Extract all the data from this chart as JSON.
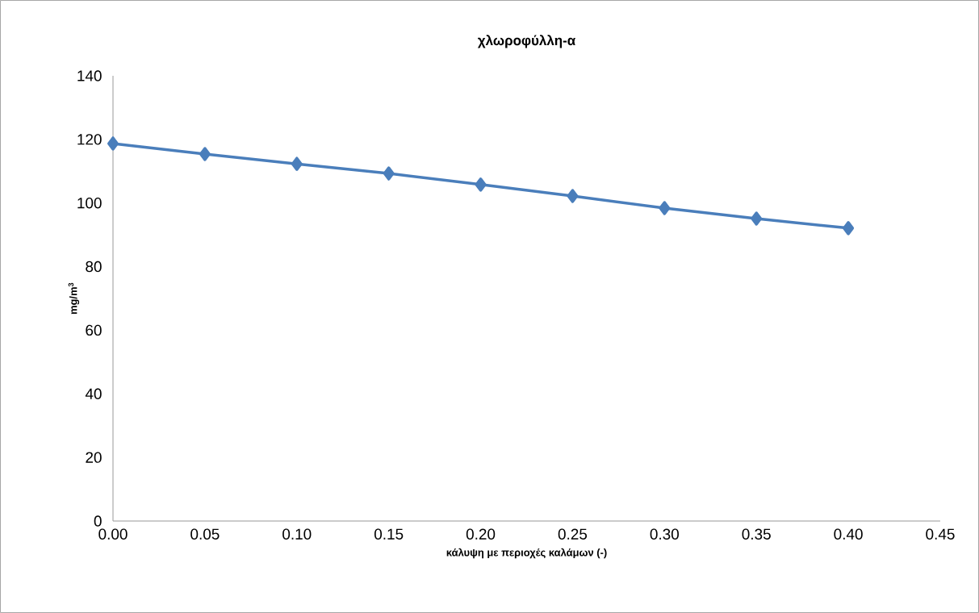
{
  "chart_data": {
    "type": "line",
    "title": "χλωροφύλλη-α",
    "xlabel": "κάλυψη με περιοχές καλάμων (-)",
    "ylabel": "mg/m$^{3}$",
    "x": [
      0.0,
      0.05,
      0.1,
      0.15,
      0.2,
      0.25,
      0.3,
      0.35,
      0.4
    ],
    "series": [
      {
        "color": "#4a7ebb",
        "values": [
          118.7,
          115.4,
          112.3,
          109.3,
          105.8,
          102.2,
          98.4,
          95.1,
          92.1
        ]
      }
    ],
    "xlim": [
      0,
      0.45
    ],
    "ylim": [
      0,
      140
    ],
    "xticks": [
      {
        "value": 0,
        "label": "0.00"
      },
      {
        "value": 0.05,
        "label": "0.05"
      },
      {
        "value": 0.1,
        "label": "0.10"
      },
      {
        "value": 0.15,
        "label": "0.15"
      },
      {
        "value": 0.2,
        "label": "0.20"
      },
      {
        "value": 0.25,
        "label": "0.25"
      },
      {
        "value": 0.3,
        "label": "0.30"
      },
      {
        "value": 0.35,
        "label": "0.35"
      },
      {
        "value": 0.4,
        "label": "0.40"
      },
      {
        "value": 0.45,
        "label": "0.45"
      }
    ],
    "yticks": [
      0,
      20,
      40,
      60,
      80,
      100,
      120,
      140
    ],
    "grid": false,
    "marker": "diamond",
    "line_style": "solid"
  }
}
